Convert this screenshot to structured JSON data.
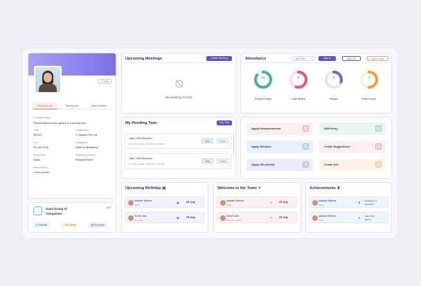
{
  "profile": {
    "edit_label": "Edit",
    "tabs": [
      "Personal Info",
      "Family Info",
      "Bank Details"
    ],
    "employee_name_label": "Employee Name",
    "employee_name": "Prachi Mishra lorem ipsum is a dummy text",
    "code_label": "Code",
    "code": "0DX12",
    "org_label": "Organization",
    "org": "IT Aakash Pvt Ltd",
    "doj_label": "DOJ",
    "doj": "01 Jan 2020",
    "designation_label": "Designation",
    "designation": "Sales & Marketing",
    "dept_label": "Department",
    "dept": "Sales",
    "manager_label": "Reporting Manager",
    "manager": "Prashant Neel",
    "branch_label": "Branch Name",
    "branch": "Lorem ipsum"
  },
  "company": {
    "name_line1": "Gami Group of",
    "name_line2": "Companies",
    "edit_label": "Edit",
    "links": [
      "Website",
      "Our Vision",
      "Brochure"
    ]
  },
  "meetings": {
    "title": "Upcoming Meetings",
    "create_label": "Create Meeting",
    "empty_text": "No Meeting Found"
  },
  "tasks": {
    "title": "My Pending Task",
    "add_label": "Add Task",
    "items": [
      {
        "title": "Task: CRM Resolved",
        "meta": "Fri, 26th-7-2024, 4:30 PM to 5:30 PM",
        "view": "View",
        "done": "Done"
      },
      {
        "title": "Task: CRM Resolved",
        "meta": "Fri, 26th-7-2024, 4:30 PM to 5:30 PM",
        "view": "View",
        "done": "Done"
      }
    ]
  },
  "attendance": {
    "title": "Attendance",
    "month": "July 2024",
    "sign_in": "Sign In",
    "sign_out": "Sign Out",
    "apply_leave": "Apply Leave",
    "stats": [
      {
        "value": "10",
        "label": "Present Days",
        "color": "#3fb88e",
        "fraction": 0.85
      },
      {
        "value": "5",
        "label": "Late Marks",
        "color": "#e8508a",
        "fraction": 0.55
      },
      {
        "value": "0",
        "label": "0Days",
        "color": "#5b6fe0",
        "fraction": 0.3
      },
      {
        "value": "4",
        "label": "Paid Leave",
        "color": "#f0a030",
        "fraction": 0.5
      }
    ]
  },
  "actions": {
    "items": [
      "Apply Reimbursement",
      "DSR Entry",
      "Apply Advance",
      "Create Suggestions",
      "Apply OD Activity",
      "Create IOU"
    ]
  },
  "birthday": {
    "title": "Upcoming Birthday",
    "items": [
      {
        "name": "Aakash Mishra",
        "role": "Sales",
        "date": "25 July"
      },
      {
        "name": "Sumit Jain",
        "role": "Executive",
        "date": "25 July"
      }
    ]
  },
  "welcome": {
    "title": "Welcome to the Team",
    "items": [
      {
        "name": "Aakash Mishra",
        "role": "Sales",
        "date": "25 July"
      },
      {
        "name": "Sumit Jain",
        "role": "Executive Sales",
        "date": "25 July"
      }
    ]
  },
  "achievements": {
    "title": "Achievements",
    "items": [
      {
        "name": "Aakash Mishra",
        "role": "Sales",
        "award_line1": "Employee of",
        "award_line2": "the Month"
      },
      {
        "name": "Aakash Mishra",
        "role": "Sales",
        "award_line1": "Star of the",
        "award_line2": "Month"
      }
    ]
  },
  "colors": {
    "accent": "#5b4fd6",
    "orange": "#f07a3a"
  }
}
